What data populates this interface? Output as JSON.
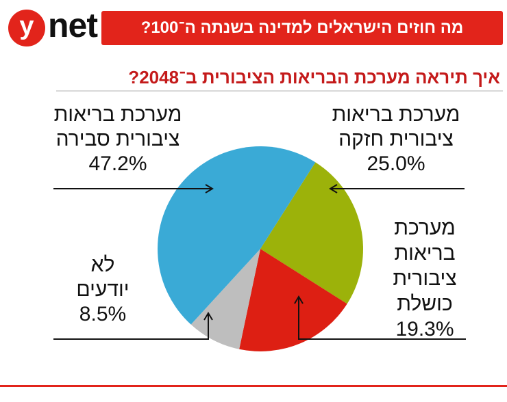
{
  "brand": {
    "logo_mark": "y",
    "logo_word": "net",
    "logo_color": "#e2241b"
  },
  "banner": {
    "text": "מה חוזים הישראלים למדינה בשנתה ה־100?",
    "bg_color": "#e2241b"
  },
  "chart_data": {
    "type": "pie",
    "title": "איך תיראה מערכת הבריאות הציבורית ב־2048?",
    "start": "12 o'clock, clockwise",
    "slices": [
      {
        "label": "מערכת בריאות ציבורית חזקה",
        "value": 25.0,
        "display": "25.0%",
        "color": "#9cb20a"
      },
      {
        "label": "מערכת בריאות ציבורית כושלת",
        "value": 19.3,
        "display": "19.3%",
        "color": "#dd1f13"
      },
      {
        "label": "לא יודעים",
        "value": 8.5,
        "display": "8.5%",
        "color": "#bebebe"
      },
      {
        "label": "מערכת בריאות ציבורית סבירה",
        "value": 47.2,
        "display": "47.2%",
        "color": "#3aaad6"
      }
    ],
    "label_lines": {
      "strong": [
        "מערכת בריאות",
        "ציבורית חזקה"
      ],
      "failing": [
        "מערכת",
        "בריאות",
        "ציבורית",
        "כושלת"
      ],
      "unknown": [
        "לא",
        "יודעים"
      ],
      "reasonable": [
        "מערכת בריאות",
        "ציבורית סבירה"
      ]
    }
  }
}
